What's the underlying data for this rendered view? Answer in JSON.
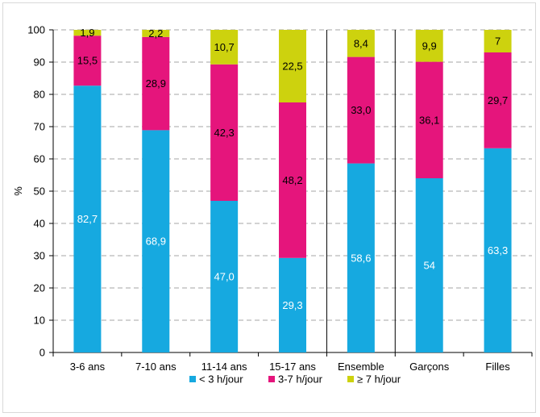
{
  "chart_data": {
    "type": "bar",
    "stacked": true,
    "ylabel": "%",
    "ylim": [
      0,
      100
    ],
    "yticks": [
      0,
      10,
      20,
      30,
      40,
      50,
      60,
      70,
      80,
      90,
      100
    ],
    "grid": true,
    "legend": "bottom",
    "categories": [
      "3-6 ans",
      "7-10 ans",
      "11-14 ans",
      "15-17 ans",
      "Ensemble",
      "Garçons",
      "Filles"
    ],
    "separators_after": [
      "15-17 ans",
      "Ensemble"
    ],
    "series": [
      {
        "name": "< 3 h/jour",
        "color": "#16a9e0",
        "values": [
          82.7,
          68.9,
          47.0,
          29.3,
          58.6,
          54,
          63.3
        ],
        "labels": [
          "82,7",
          "68,9",
          "47,0",
          "29,3",
          "58,6",
          "54",
          "63,3"
        ]
      },
      {
        "name": "3-7 h/jour",
        "color": "#e5157c",
        "values": [
          15.5,
          28.9,
          42.3,
          48.2,
          33.0,
          36.1,
          29.7
        ],
        "labels": [
          "15,5",
          "28,9",
          "42,3",
          "48,2",
          "33,0",
          "36,1",
          "29,7"
        ]
      },
      {
        "name": "≥ 7 h/jour",
        "color": "#cdd20e",
        "values": [
          1.9,
          2.2,
          10.7,
          22.5,
          8.4,
          9.9,
          7
        ],
        "labels": [
          "1,9",
          "2,2",
          "10,7",
          "22,5",
          "8,4",
          "9,9",
          "7"
        ]
      }
    ]
  }
}
